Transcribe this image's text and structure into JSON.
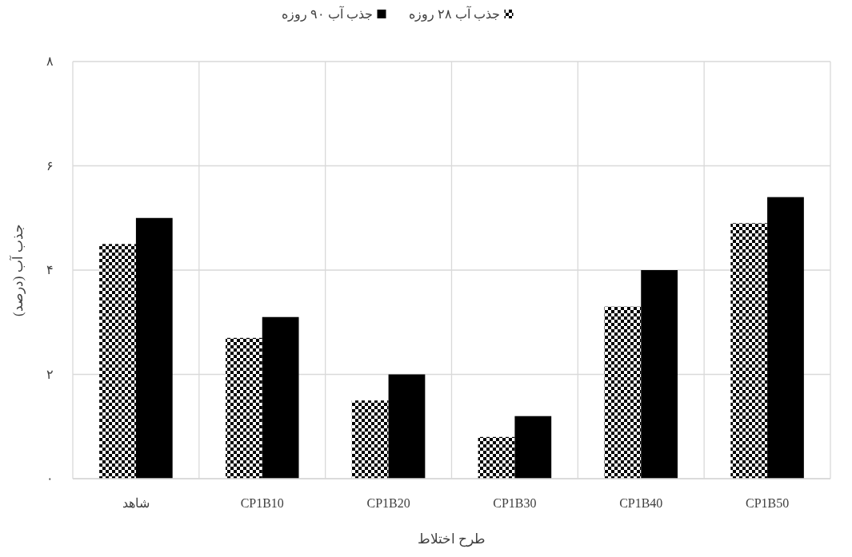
{
  "chart_data": {
    "type": "bar",
    "xlabel": "طرح اختلاط",
    "ylabel": "جذب آب (درصد)",
    "categories": [
      "شاهد",
      "CP1B10",
      "CP1B20",
      "CP1B30",
      "CP1B40",
      "CP1B50"
    ],
    "series": [
      {
        "name": "جذب آب ۲۸ روزه",
        "color": "#000000",
        "values": [
          4.5,
          2.7,
          1.5,
          0.8,
          3.3,
          4.9
        ]
      },
      {
        "name": "جذب آب ۹۰ روزه",
        "color": "#000000",
        "values": [
          5.0,
          3.1,
          2.0,
          1.2,
          4.0,
          5.4
        ]
      }
    ],
    "ylim": [
      0,
      8
    ],
    "yticks": [
      {
        "value": 0,
        "label": "۰"
      },
      {
        "value": 2,
        "label": "۲"
      },
      {
        "value": 4,
        "label": "۴"
      },
      {
        "value": 6,
        "label": "۶"
      },
      {
        "value": 8,
        "label": "۸"
      }
    ],
    "grid": true,
    "legend": "top"
  }
}
